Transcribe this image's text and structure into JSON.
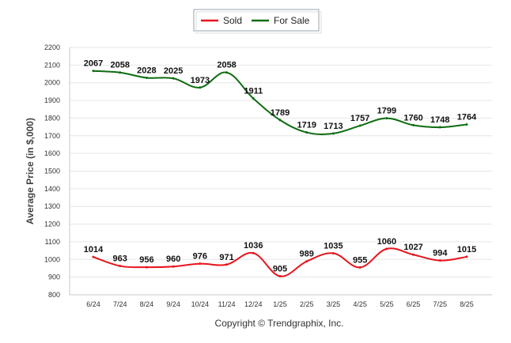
{
  "chart_data": {
    "type": "line",
    "categories": [
      "6/24",
      "7/24",
      "8/24",
      "9/24",
      "10/24",
      "11/24",
      "12/24",
      "1/25",
      "2/25",
      "3/25",
      "4/25",
      "5/25",
      "6/25",
      "7/25",
      "8/25"
    ],
    "series": [
      {
        "name": "Sold",
        "color": "#e8141c",
        "values": [
          1014,
          963,
          956,
          960,
          976,
          971,
          1036,
          905,
          989,
          1035,
          955,
          1060,
          1027,
          994,
          1015
        ]
      },
      {
        "name": "For Sale",
        "color": "#0d6d10",
        "values": [
          2067,
          2058,
          2028,
          2025,
          1973,
          2058,
          1911,
          1789,
          1719,
          1713,
          1757,
          1799,
          1760,
          1748,
          1764
        ]
      }
    ],
    "xlabel": "",
    "ylabel": "Average Price (in $,000)",
    "ylim": [
      800,
      2200
    ],
    "yticks": [
      800,
      900,
      1000,
      1100,
      1200,
      1300,
      1400,
      1500,
      1600,
      1700,
      1800,
      1900,
      2000,
      2100,
      2200
    ],
    "grid": true,
    "legend_position": "top-center"
  },
  "footer": {
    "copyright": "Copyright © Trendgraphix, Inc."
  }
}
